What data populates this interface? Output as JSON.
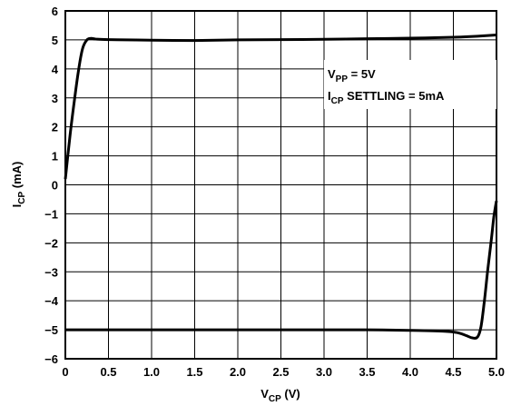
{
  "chart_data": {
    "type": "line",
    "title": "",
    "xlabel": {
      "main": "V",
      "sub": "CP",
      "unit": " (V)"
    },
    "ylabel": {
      "main": "I",
      "sub": "CP",
      "unit": " (mA)"
    },
    "xlim": [
      0,
      5
    ],
    "ylim": [
      -6,
      6
    ],
    "grid": true,
    "x_ticks": [
      "0",
      "0.5",
      "1.0",
      "1.5",
      "2.0",
      "2.5",
      "3.0",
      "3.5",
      "4.0",
      "4.5",
      "5.0"
    ],
    "y_ticks": [
      "−6",
      "−5",
      "−4",
      "−3",
      "−2",
      "−1",
      "0",
      "1",
      "2",
      "3",
      "4",
      "5",
      "6"
    ],
    "annotations": [
      {
        "main": "V",
        "sub": "PP",
        "rest": " = 5V"
      },
      {
        "main": "I",
        "sub": "CP",
        "rest": " SETTLING = 5mA"
      }
    ],
    "series": [
      {
        "x": [
          0.0,
          0.05,
          0.1,
          0.15,
          0.2,
          0.25,
          0.3,
          0.35,
          0.5,
          1.0,
          1.5,
          2.0,
          2.5,
          3.0,
          3.5,
          4.0,
          4.5,
          4.8,
          5.0
        ],
        "y": [
          0.2,
          1.6,
          2.8,
          3.9,
          4.7,
          5.0,
          5.05,
          5.03,
          5.01,
          4.99,
          4.98,
          5.0,
          5.01,
          5.02,
          5.04,
          5.06,
          5.09,
          5.13,
          5.17
        ]
      },
      {
        "x": [
          0.0,
          0.5,
          1.0,
          1.5,
          2.0,
          2.5,
          3.0,
          3.5,
          4.0,
          4.4,
          4.55,
          4.65,
          4.72,
          4.78,
          4.82,
          4.86,
          4.9,
          4.94,
          4.97,
          5.0
        ],
        "y": [
          -5.0,
          -5.0,
          -5.0,
          -5.0,
          -5.0,
          -5.0,
          -5.0,
          -5.0,
          -5.02,
          -5.05,
          -5.1,
          -5.2,
          -5.28,
          -5.25,
          -4.9,
          -4.0,
          -2.9,
          -1.9,
          -1.1,
          -0.55
        ]
      }
    ]
  }
}
